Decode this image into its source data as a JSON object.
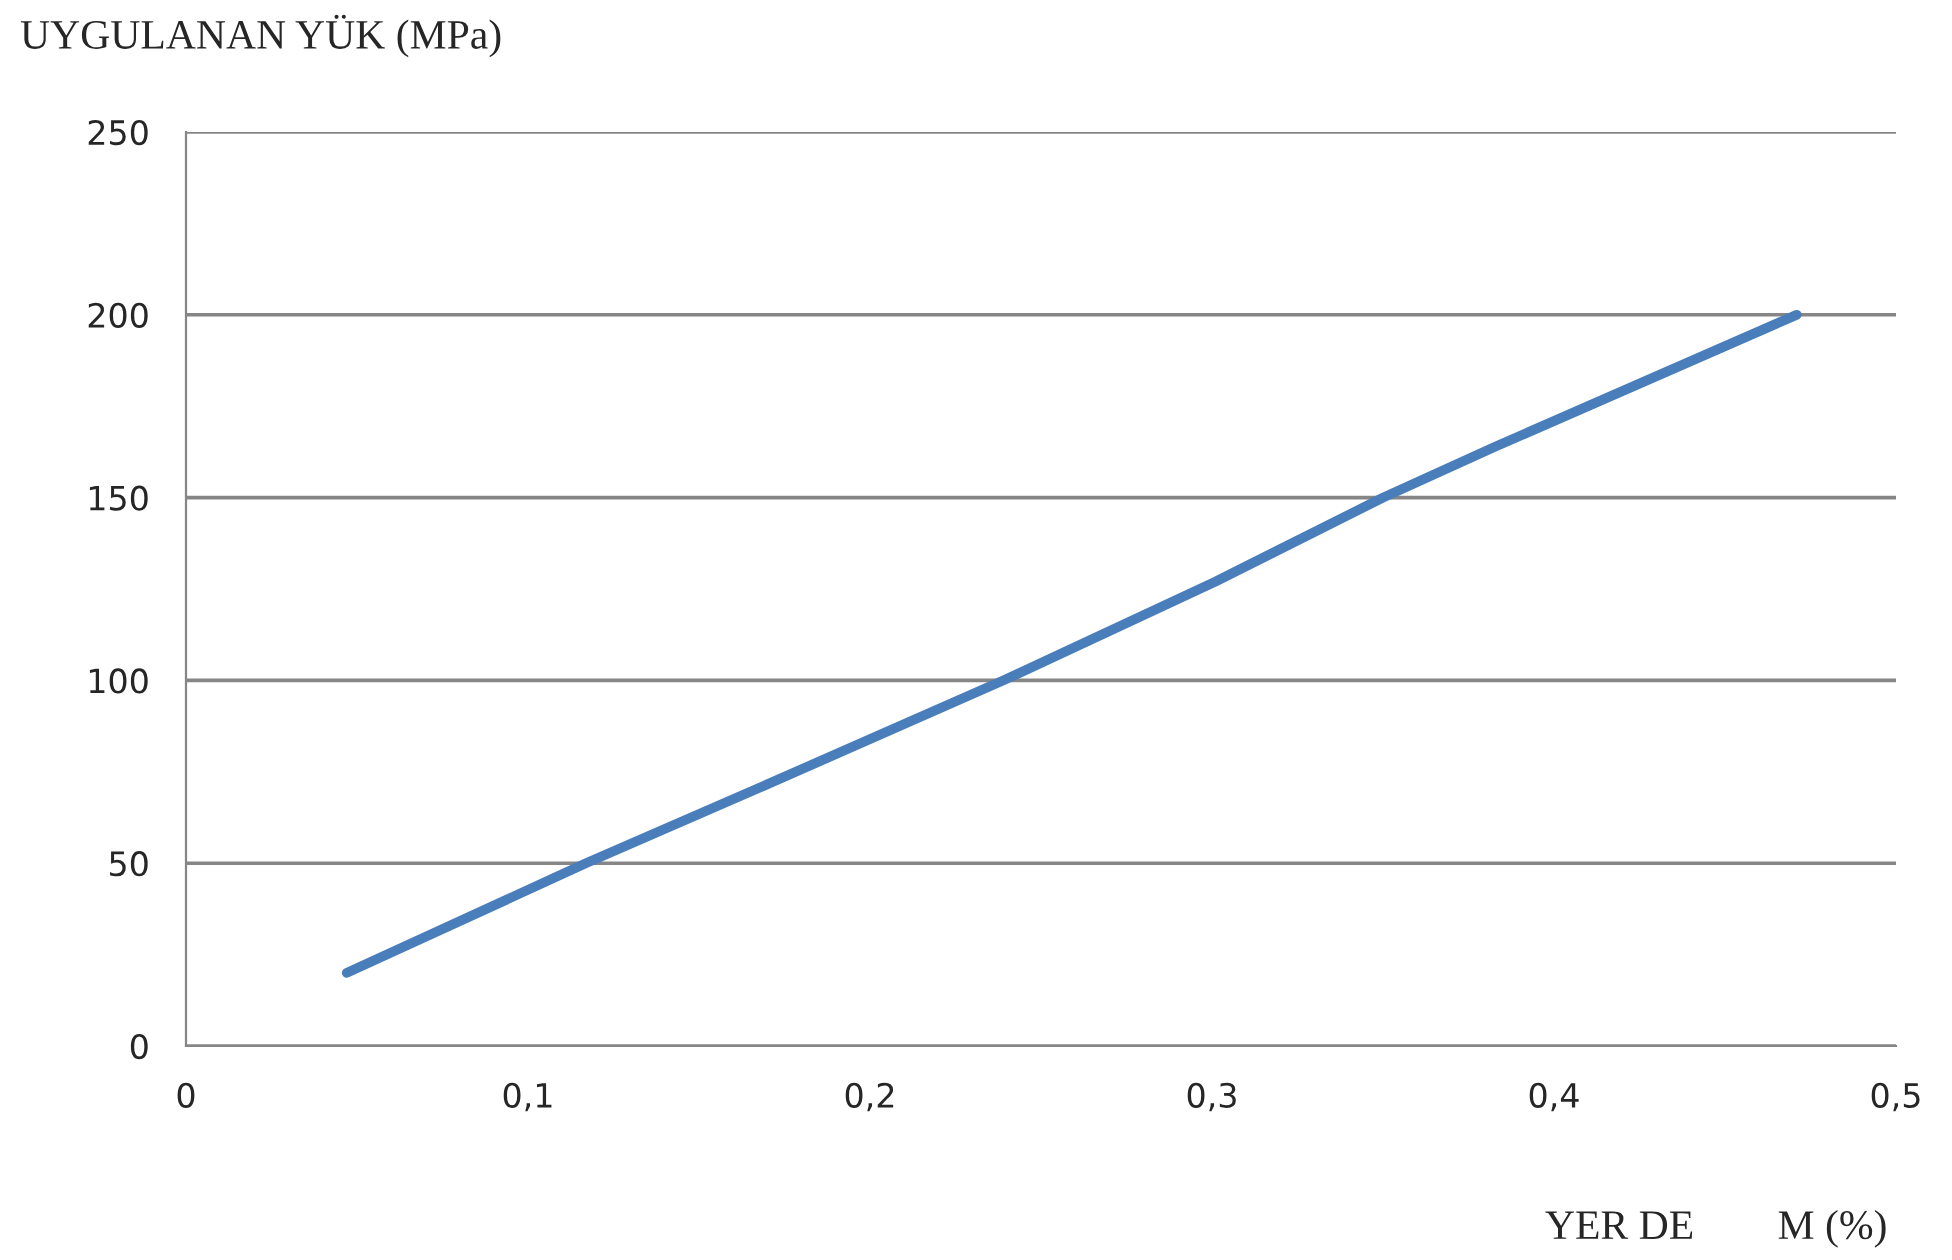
{
  "chart_data": {
    "type": "line",
    "ylabel": "UYGULANAN YÜK (MPa)",
    "xlabel": "YER DE        M (%)",
    "series": [
      {
        "color": "#4a7ebb",
        "x": [
          0.047,
          0.117,
          0.171,
          0.239,
          0.301,
          0.35,
          0.383,
          0.471
        ],
        "values": [
          20,
          50,
          72,
          100,
          127,
          150,
          164,
          200
        ]
      }
    ],
    "xlim": [
      0,
      0.5
    ],
    "xticks": [
      0,
      {
        "value": 0.1,
        "label": "0,1"
      },
      {
        "value": 0.2,
        "label": "0,2"
      },
      {
        "value": 0.3,
        "label": "0,3"
      },
      {
        "value": 0.4,
        "label": "0,4"
      },
      {
        "value": 0.5,
        "label": "0,5"
      }
    ],
    "ylim": [
      0,
      250
    ],
    "yticks": [
      0,
      50,
      100,
      150,
      200,
      250
    ],
    "grid": "y",
    "line_style": "solid",
    "marker": "none"
  }
}
